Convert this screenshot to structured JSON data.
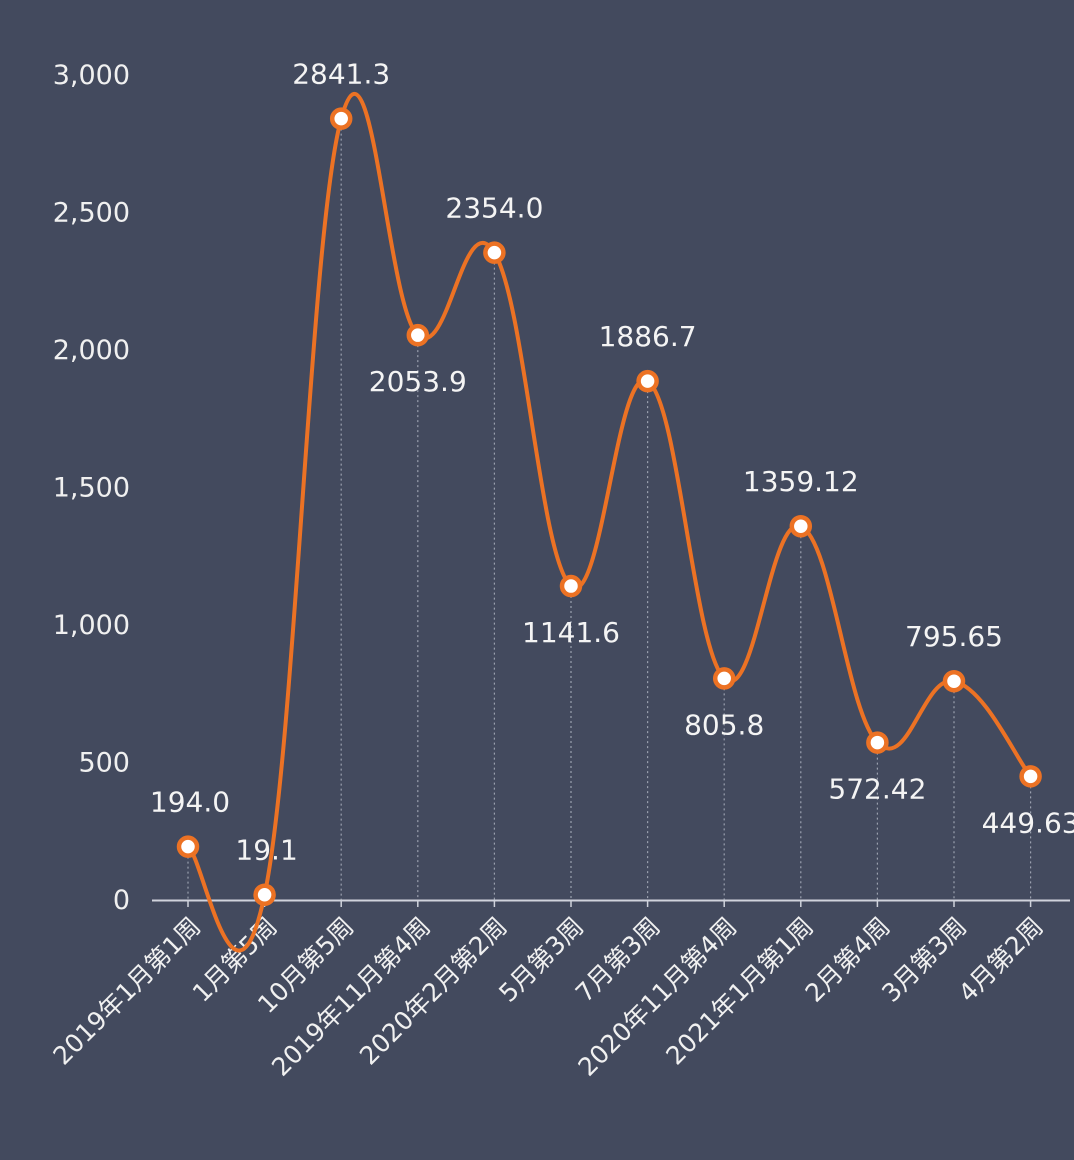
{
  "chart_data": {
    "type": "line",
    "smooth": true,
    "categories": [
      "2019年1月第1周",
      "1月第5周",
      "10月第5周",
      "2019年11月第4周",
      "2020年2月第2周",
      "5月第3周",
      "7月第3周",
      "2020年11月第4周",
      "2021年1月第1周",
      "2月第4周",
      "3月第3周",
      "4月第2周"
    ],
    "values": [
      194.0,
      19.1,
      2841.3,
      2053.9,
      2354.0,
      1141.6,
      1886.7,
      805.8,
      1359.12,
      572.42,
      795.65,
      449.63
    ],
    "data_labels": [
      "194.0",
      "19.1",
      "2841.3",
      "2053.9",
      "2354.0",
      "1141.6",
      "1886.7",
      "805.8",
      "1359.12",
      "572.42",
      "795.65",
      "449.63"
    ],
    "label_position": [
      "above",
      "above",
      "above",
      "below",
      "above",
      "below",
      "above",
      "below",
      "above",
      "below",
      "above",
      "below"
    ],
    "ylim": [
      0,
      3000
    ],
    "yticks": [
      0,
      500,
      1000,
      1500,
      2000,
      2500,
      3000
    ],
    "ytick_labels": [
      "0",
      "500",
      "1,000",
      "1,500",
      "2,000",
      "2,500",
      "3,000"
    ],
    "grid": false,
    "drop_lines": true,
    "colors": {
      "background": "#434a5e",
      "line": "#ec7224",
      "marker_fill": "#ffffff",
      "axis": "#d0d3dc",
      "drop_line": "#9aa0ae",
      "text": "#f0f0f0"
    }
  }
}
